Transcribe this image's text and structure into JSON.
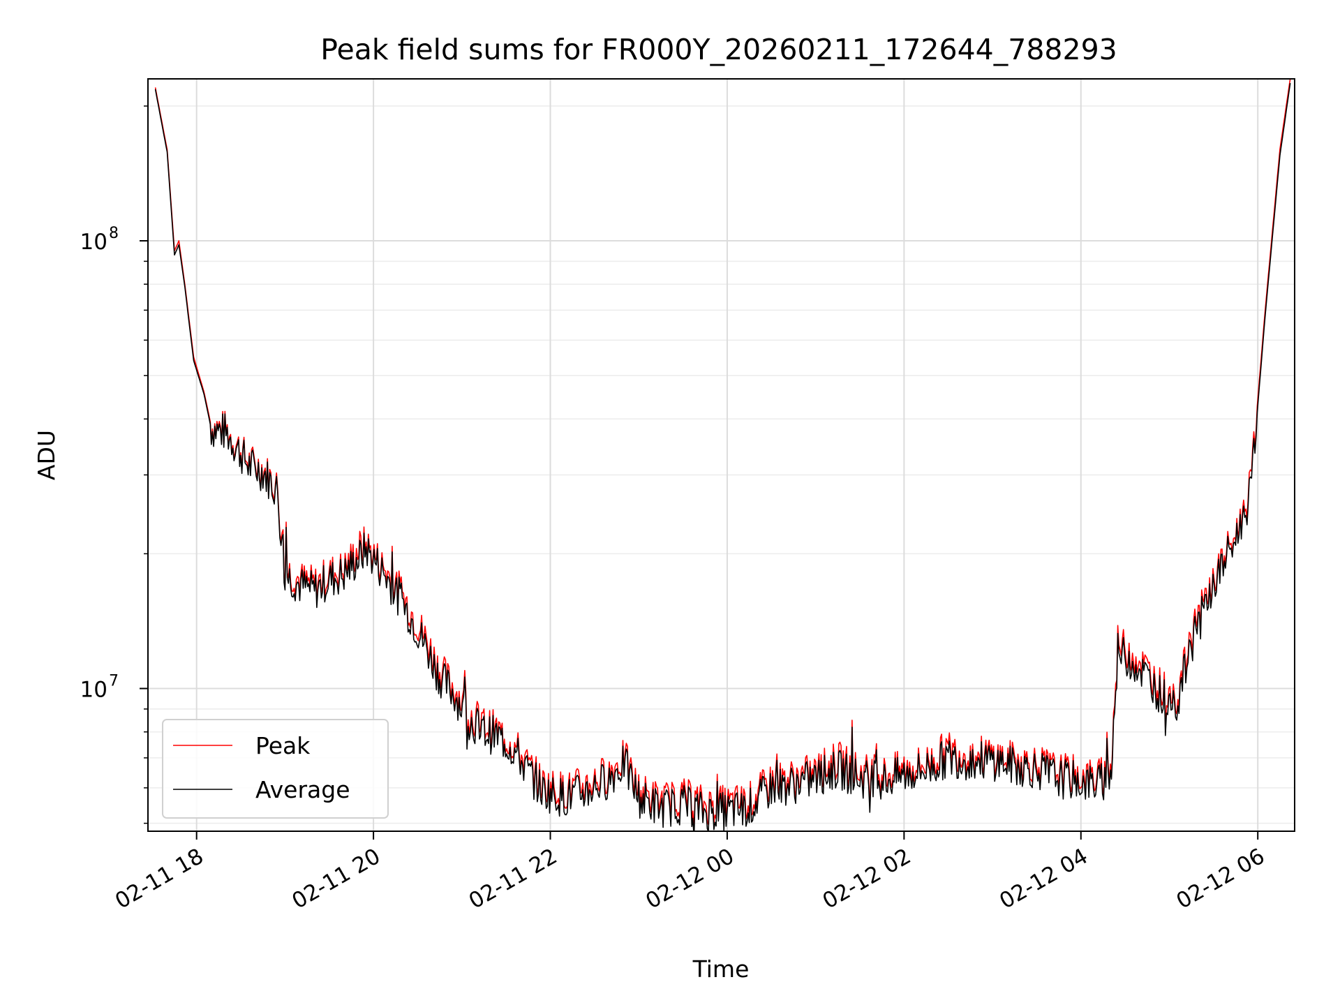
{
  "chart_data": {
    "type": "line",
    "title": "Peak field sums for FR000Y_20260211_172644_788293",
    "xlabel": "Time",
    "ylabel": "ADU",
    "y_scale": "log",
    "ylim": [
      4800000,
      230000000
    ],
    "xlim": [
      "2026-02-11 17:27",
      "2026-02-12 06:25"
    ],
    "x_ticks": [
      {
        "label": "02-11 18",
        "value": "2026-02-11 18:00"
      },
      {
        "label": "02-11 20",
        "value": "2026-02-11 20:00"
      },
      {
        "label": "02-11 22",
        "value": "2026-02-11 22:00"
      },
      {
        "label": "02-12 00",
        "value": "2026-02-12 00:00"
      },
      {
        "label": "02-12 02",
        "value": "2026-02-12 02:00"
      },
      {
        "label": "02-12 04",
        "value": "2026-02-12 04:00"
      },
      {
        "label": "02-12 06",
        "value": "2026-02-12 06:00"
      }
    ],
    "y_ticks": [
      {
        "base": "10",
        "exp": "7",
        "value": 10000000
      },
      {
        "base": "10",
        "exp": "8",
        "value": 100000000
      }
    ],
    "grid": true,
    "legend_position": "lower-left",
    "series": [
      {
        "name": "Peak",
        "color": "#ff0000",
        "x": [
          "2026-02-11 17:32",
          "2026-02-11 17:40",
          "2026-02-11 17:45",
          "2026-02-11 17:48",
          "2026-02-11 17:52",
          "2026-02-11 17:58",
          "2026-02-11 18:05",
          "2026-02-11 18:10",
          "2026-02-11 18:20",
          "2026-02-11 18:30",
          "2026-02-11 18:35",
          "2026-02-11 18:45",
          "2026-02-11 18:55",
          "2026-02-11 18:58",
          "2026-02-11 19:00",
          "2026-02-11 19:10",
          "2026-02-11 19:20",
          "2026-02-11 19:30",
          "2026-02-11 19:40",
          "2026-02-11 19:50",
          "2026-02-11 19:55",
          "2026-02-11 20:05",
          "2026-02-11 20:15",
          "2026-02-11 20:25",
          "2026-02-11 20:35",
          "2026-02-11 20:45",
          "2026-02-11 20:55",
          "2026-02-11 21:05",
          "2026-02-11 21:15",
          "2026-02-11 21:25",
          "2026-02-11 21:35",
          "2026-02-11 21:45",
          "2026-02-11 21:55",
          "2026-02-11 22:10",
          "2026-02-11 22:25",
          "2026-02-11 22:40",
          "2026-02-11 22:50",
          "2026-02-11 23:00",
          "2026-02-11 23:15",
          "2026-02-11 23:30",
          "2026-02-11 23:45",
          "2026-02-12 00:00",
          "2026-02-12 00:15",
          "2026-02-12 00:30",
          "2026-02-12 00:45",
          "2026-02-12 01:00",
          "2026-02-12 01:15",
          "2026-02-12 01:30",
          "2026-02-12 01:45",
          "2026-02-12 02:00",
          "2026-02-12 02:15",
          "2026-02-12 02:30",
          "2026-02-12 02:45",
          "2026-02-12 03:00",
          "2026-02-12 03:15",
          "2026-02-12 03:30",
          "2026-02-12 03:45",
          "2026-02-12 04:00",
          "2026-02-12 04:10",
          "2026-02-12 04:20",
          "2026-02-12 04:25",
          "2026-02-12 04:35",
          "2026-02-12 04:45",
          "2026-02-12 04:55",
          "2026-02-12 05:05",
          "2026-02-12 05:15",
          "2026-02-12 05:25",
          "2026-02-12 05:35",
          "2026-02-12 05:45",
          "2026-02-12 05:55",
          "2026-02-12 06:05",
          "2026-02-12 06:15",
          "2026-02-12 06:22"
        ],
        "y": [
          220000000,
          160000000,
          95000000,
          100000000,
          80000000,
          55000000,
          46000000,
          38500000,
          37800000,
          34000000,
          32000000,
          31000000,
          28000000,
          21000000,
          18500000,
          17500000,
          17000000,
          18000000,
          18500000,
          20500000,
          21000000,
          19000000,
          17000000,
          15000000,
          13000000,
          11000000,
          10000000,
          8800000,
          8300000,
          8000000,
          7500000,
          6700000,
          6100000,
          5900000,
          6100000,
          6500000,
          7000000,
          5900000,
          5600000,
          5700000,
          5500000,
          5500000,
          5600000,
          6200000,
          6300000,
          6500000,
          6900000,
          6500000,
          6400000,
          6600000,
          6800000,
          7300000,
          7100000,
          7100000,
          6900000,
          6800000,
          6500000,
          6400000,
          6300000,
          6500000,
          12500000,
          12000000,
          11000000,
          10000000,
          9500000,
          13000000,
          16000000,
          19000000,
          22000000,
          28000000,
          70000000,
          160000000,
          230000000
        ]
      },
      {
        "name": "Average",
        "color": "#000000",
        "x": [
          "2026-02-11 17:32",
          "2026-02-11 17:40",
          "2026-02-11 17:45",
          "2026-02-11 17:48",
          "2026-02-11 17:52",
          "2026-02-11 17:58",
          "2026-02-11 18:05",
          "2026-02-11 18:10",
          "2026-02-11 18:20",
          "2026-02-11 18:30",
          "2026-02-11 18:35",
          "2026-02-11 18:45",
          "2026-02-11 18:55",
          "2026-02-11 18:58",
          "2026-02-11 19:00",
          "2026-02-11 19:10",
          "2026-02-11 19:20",
          "2026-02-11 19:30",
          "2026-02-11 19:40",
          "2026-02-11 19:50",
          "2026-02-11 19:55",
          "2026-02-11 20:05",
          "2026-02-11 20:15",
          "2026-02-11 20:25",
          "2026-02-11 20:35",
          "2026-02-11 20:45",
          "2026-02-11 20:55",
          "2026-02-11 21:05",
          "2026-02-11 21:15",
          "2026-02-11 21:25",
          "2026-02-11 21:35",
          "2026-02-11 21:45",
          "2026-02-11 21:55",
          "2026-02-11 22:10",
          "2026-02-11 22:25",
          "2026-02-11 22:40",
          "2026-02-11 22:50",
          "2026-02-11 23:00",
          "2026-02-11 23:15",
          "2026-02-11 23:30",
          "2026-02-11 23:45",
          "2026-02-12 00:00",
          "2026-02-12 00:15",
          "2026-02-12 00:30",
          "2026-02-12 00:45",
          "2026-02-12 01:00",
          "2026-02-12 01:15",
          "2026-02-12 01:30",
          "2026-02-12 01:45",
          "2026-02-12 02:00",
          "2026-02-12 02:15",
          "2026-02-12 02:30",
          "2026-02-12 02:45",
          "2026-02-12 03:00",
          "2026-02-12 03:15",
          "2026-02-12 03:30",
          "2026-02-12 03:45",
          "2026-02-12 04:00",
          "2026-02-12 04:10",
          "2026-02-12 04:20",
          "2026-02-12 04:25",
          "2026-02-12 04:35",
          "2026-02-12 04:45",
          "2026-02-12 04:55",
          "2026-02-12 05:05",
          "2026-02-12 05:15",
          "2026-02-12 05:25",
          "2026-02-12 05:35",
          "2026-02-12 05:45",
          "2026-02-12 05:55",
          "2026-02-12 06:05",
          "2026-02-12 06:15",
          "2026-02-12 06:22"
        ],
        "y": [
          218000000,
          158000000,
          93000000,
          98000000,
          79000000,
          54000000,
          45500000,
          38000000,
          37300000,
          33500000,
          31500000,
          30500000,
          27500000,
          20500000,
          18000000,
          17000000,
          16500000,
          17500000,
          18000000,
          19500000,
          20500000,
          18500000,
          16500000,
          14500000,
          12500000,
          10600000,
          9700000,
          8500000,
          8000000,
          7800000,
          7300000,
          6500000,
          5900000,
          5700000,
          5900000,
          6300000,
          6800000,
          5700000,
          5400000,
          5500000,
          5300000,
          5300000,
          5400000,
          6000000,
          6100000,
          6300000,
          6600000,
          6300000,
          6200000,
          6400000,
          6600000,
          7000000,
          6900000,
          6900000,
          6700000,
          6600000,
          6300000,
          6200000,
          6100000,
          6300000,
          12000000,
          11500000,
          10600000,
          9600000,
          9200000,
          12500000,
          15500000,
          18500000,
          21500000,
          27000000,
          68000000,
          155000000,
          225000000
        ]
      }
    ]
  }
}
